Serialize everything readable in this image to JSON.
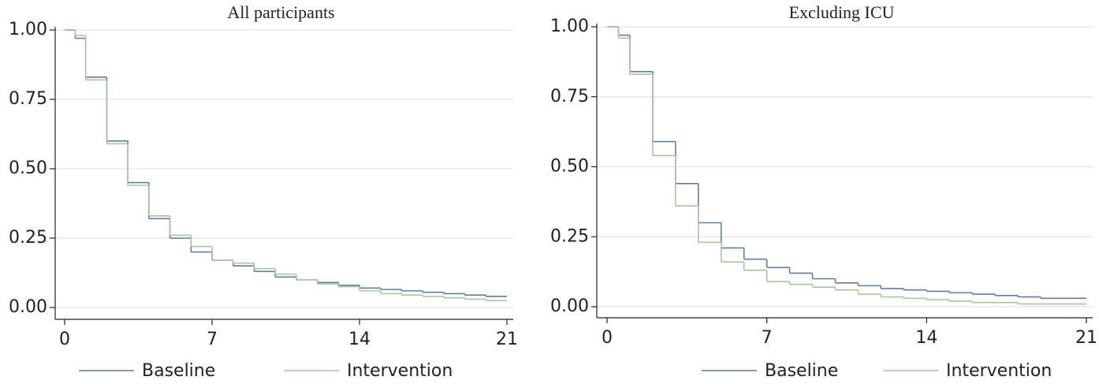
{
  "chart_data": [
    {
      "type": "step",
      "title": "All participants",
      "x": [
        0,
        0.5,
        1,
        2,
        3,
        4,
        5,
        6,
        7,
        8,
        9,
        10,
        11,
        12,
        13,
        14,
        15,
        16,
        17,
        18,
        19,
        20,
        21
      ],
      "series": [
        {
          "name": "Baseline",
          "color": "#5f7f9c",
          "values": [
            1.0,
            0.97,
            0.83,
            0.6,
            0.45,
            0.32,
            0.25,
            0.2,
            0.17,
            0.15,
            0.13,
            0.11,
            0.1,
            0.09,
            0.08,
            0.07,
            0.065,
            0.06,
            0.055,
            0.05,
            0.045,
            0.04,
            0.04
          ]
        },
        {
          "name": "Intervention",
          "color": "#a9c79c",
          "values": [
            1.0,
            0.98,
            0.82,
            0.59,
            0.44,
            0.33,
            0.26,
            0.22,
            0.17,
            0.16,
            0.14,
            0.12,
            0.1,
            0.085,
            0.075,
            0.06,
            0.05,
            0.045,
            0.04,
            0.035,
            0.03,
            0.025,
            0.025
          ]
        }
      ],
      "xlim": [
        0,
        21
      ],
      "xticks": [
        0,
        7,
        14,
        21
      ],
      "ylim": [
        0,
        1
      ],
      "yticks": [
        {
          "value": 0,
          "label": "0.00"
        },
        {
          "value": 0.25,
          "label": "0.25"
        },
        {
          "value": 0.5,
          "label": "0.50"
        },
        {
          "value": 0.75,
          "label": "0.75"
        },
        {
          "value": 1,
          "label": "1.00"
        }
      ],
      "grid": true
    },
    {
      "type": "step",
      "title": "Excluding ICU",
      "x": [
        0,
        0.5,
        1,
        2,
        3,
        4,
        5,
        6,
        7,
        8,
        9,
        10,
        11,
        12,
        13,
        14,
        15,
        16,
        17,
        18,
        19,
        20,
        21
      ],
      "series": [
        {
          "name": "Baseline",
          "color": "#5f7f9c",
          "values": [
            1.0,
            0.97,
            0.84,
            0.59,
            0.44,
            0.3,
            0.21,
            0.17,
            0.14,
            0.12,
            0.1,
            0.085,
            0.075,
            0.065,
            0.06,
            0.055,
            0.05,
            0.045,
            0.04,
            0.035,
            0.03,
            0.03,
            0.03
          ]
        },
        {
          "name": "Intervention",
          "color": "#a9c79c",
          "values": [
            1.0,
            0.96,
            0.83,
            0.54,
            0.36,
            0.23,
            0.16,
            0.13,
            0.09,
            0.08,
            0.07,
            0.06,
            0.045,
            0.035,
            0.03,
            0.025,
            0.02,
            0.015,
            0.015,
            0.01,
            0.01,
            0.01,
            0.01
          ]
        }
      ],
      "xlim": [
        0,
        21
      ],
      "xticks": [
        0,
        7,
        14,
        21
      ],
      "ylim": [
        0,
        1
      ],
      "yticks": [
        {
          "value": 0,
          "label": "0.00"
        },
        {
          "value": 0.25,
          "label": "0.25"
        },
        {
          "value": 0.5,
          "label": "0.50"
        },
        {
          "value": 0.75,
          "label": "0.75"
        },
        {
          "value": 1,
          "label": "1.00"
        }
      ],
      "grid": true
    }
  ]
}
